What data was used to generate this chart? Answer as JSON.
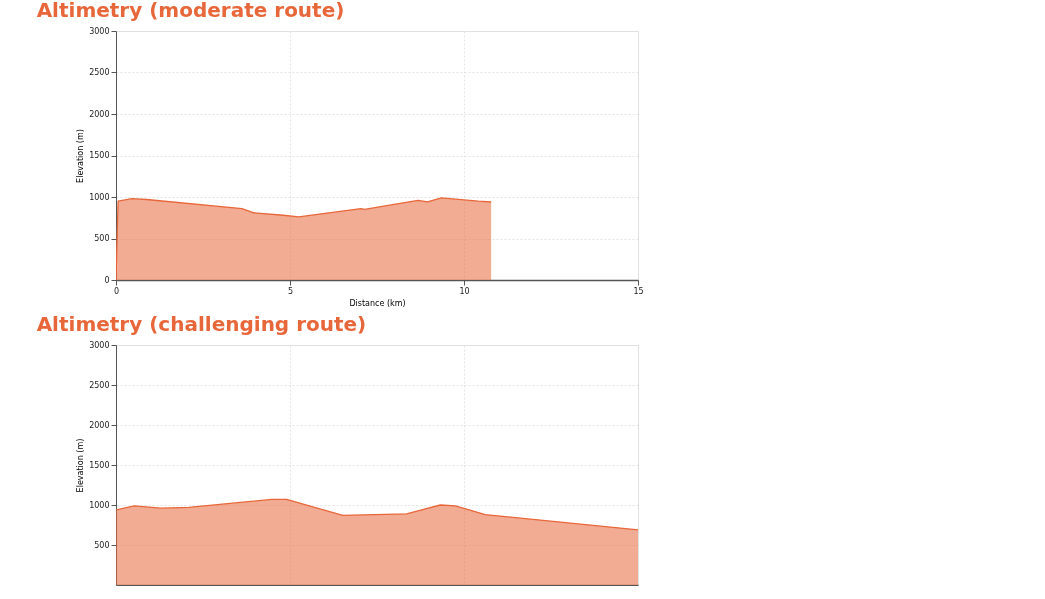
{
  "chart_data": [
    {
      "type": "area",
      "title": "Altimetry (moderate route)",
      "xlabel": "Distance (km)",
      "ylabel": "Elevation (m)",
      "color": "#e8673a",
      "grid": true,
      "x": [
        0,
        0.06,
        0.46,
        0.88,
        3.62,
        3.96,
        4.81,
        5.25,
        7.04,
        7.14,
        8.68,
        8.95,
        9.35,
        10.41,
        10.78
      ],
      "values": [
        0,
        950,
        980,
        970,
        860,
        810,
        780,
        760,
        860,
        850,
        960,
        940,
        990,
        950,
        940
      ],
      "xlim": [
        0,
        15
      ],
      "xticks": [
        0,
        5,
        10,
        15
      ],
      "ylim": [
        0,
        3000
      ],
      "yticks": [
        0,
        500,
        1000,
        1500,
        2000,
        2500,
        3000
      ]
    },
    {
      "type": "area",
      "title": "Altimetry (challenging route)",
      "ylabel": "Elevation (m)",
      "color": "#e8673a",
      "grid": true,
      "tick_labels": "y",
      "x": [
        0,
        0.53,
        1.28,
        2.09,
        4.47,
        4.9,
        6.52,
        8.35,
        9.32,
        9.75,
        10.61,
        15
      ],
      "values": [
        940,
        990,
        960,
        970,
        1070,
        1070,
        870,
        890,
        1000,
        990,
        880,
        690
      ],
      "xlim": [
        0,
        15
      ],
      "xticks": [
        {
          "value": 0,
          "label": null
        },
        {
          "value": 5,
          "label": null
        },
        {
          "value": 10,
          "label": null
        },
        {
          "value": 15,
          "label": null
        }
      ],
      "ylim": [
        0,
        3000
      ],
      "yticks": [
        500,
        1000,
        1500,
        2000,
        2500,
        3000
      ]
    }
  ]
}
